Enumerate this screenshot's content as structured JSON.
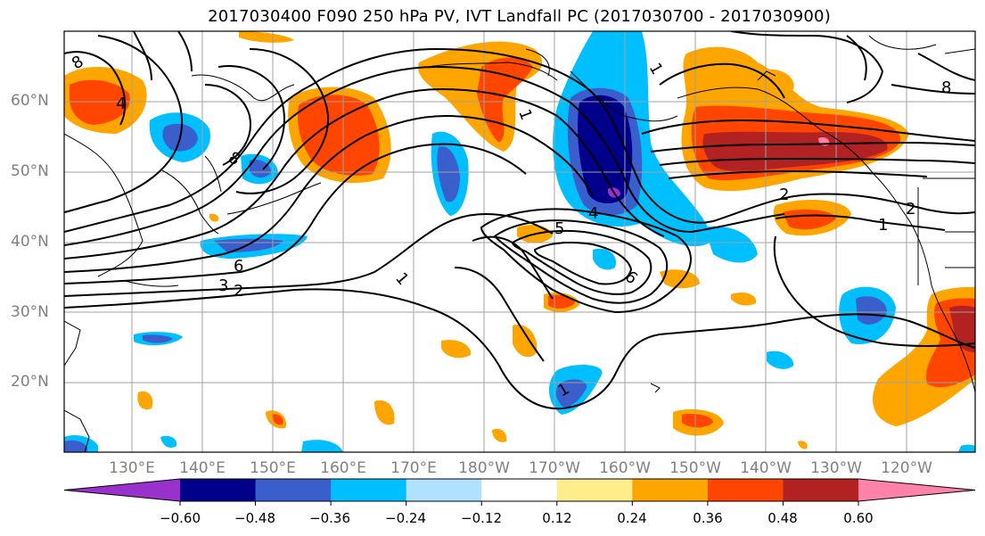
{
  "title": "2017030400 F090 250 hPa PV, IVT Landfall PC (2017030700 - 2017030900)",
  "lat_labels": [
    "60°N",
    "50°N",
    "40°N",
    "30°N",
    "20°N"
  ],
  "lon_labels": [
    "130°E",
    "140°E",
    "150°E",
    "160°E",
    "170°E",
    "180°W",
    "170°W",
    "160°W",
    "150°W",
    "140°W",
    "130°W",
    "120°W"
  ],
  "contour_labels": [
    "1",
    "2",
    "3",
    "4",
    "5",
    "6",
    "8",
    "1",
    "2",
    "1",
    "2",
    "4",
    "8",
    "1",
    "6",
    "8",
    "1"
  ],
  "colorbar": {
    "tick_labels": [
      "−0.60",
      "−0.48",
      "−0.36",
      "−0.24",
      "−0.12",
      "0.12",
      "0.24",
      "0.36",
      "0.48",
      "0.60"
    ],
    "colors": [
      "#9932cc",
      "#00008b",
      "#3a5fcd",
      "#00bfff",
      "#b0e2ff",
      "#ffffff",
      "#ffec8b",
      "#ffa500",
      "#ff4500",
      "#b22222",
      "#ff82ab"
    ]
  },
  "colors": {
    "purple": "#9932cc",
    "navy": "#00008b",
    "blue": "#3a5fcd",
    "cyan": "#00bfff",
    "lightblue": "#b0e2ff",
    "yellow": "#ffec8b",
    "orange": "#ffa500",
    "redorange": "#ff4500",
    "darkred": "#b22222",
    "pink": "#ff82ab"
  }
}
